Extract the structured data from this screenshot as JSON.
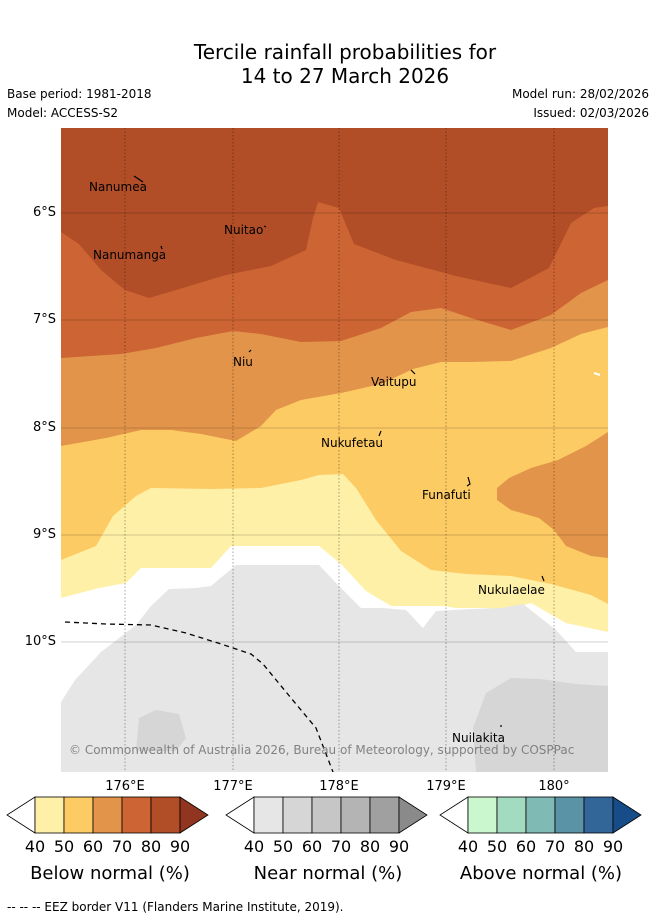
{
  "title_line1": "Tercile rainfall probabilities for",
  "title_line2": "14 to 27 March 2026",
  "base_period": "Base period: 1981-2018",
  "model": "Model: ACCESS-S2",
  "model_run": "Model run: 28/02/2026",
  "issued": "Issued: 02/03/2026",
  "copyright": "© Commonwealth of Australia 2026, Bureau of Meteorology, supported by COSPPac",
  "footnote": "--  --  -- EEZ border V11 (Flanders Marine Institute, 2019).",
  "lat_labels": [
    "6°S",
    "7°S",
    "8°S",
    "9°S",
    "10°S"
  ],
  "lon_labels": [
    "176°E",
    "177°E",
    "178°E",
    "179°E",
    "180°"
  ],
  "places": [
    {
      "name": "Nanumea"
    },
    {
      "name": "Nuitao"
    },
    {
      "name": "Nanumanga"
    },
    {
      "name": "Niu"
    },
    {
      "name": "Vaitupu"
    },
    {
      "name": "Nukufetau"
    },
    {
      "name": "Funafuti"
    },
    {
      "name": "Nukulaelae"
    },
    {
      "name": "Nuilakita"
    }
  ],
  "legend": {
    "below": {
      "label": "Below normal (%)",
      "colors": [
        "#fff0a8",
        "#fdcb64",
        "#e2954a",
        "#cd6433",
        "#b14d27",
        "#913520"
      ]
    },
    "near": {
      "label": "Near normal (%)",
      "colors": [
        "#e6e6e6",
        "#d6d6d6",
        "#c6c6c6",
        "#b4b4b4",
        "#a0a0a0",
        "#8a8a8a"
      ]
    },
    "above": {
      "label": "Above normal (%)",
      "colors": [
        "#caf7cd",
        "#a3dbc0",
        "#7fbab4",
        "#5a93a5",
        "#326699",
        "#164c87"
      ]
    },
    "ticks": [
      "40",
      "50",
      "60",
      "70",
      "80",
      "90"
    ]
  }
}
